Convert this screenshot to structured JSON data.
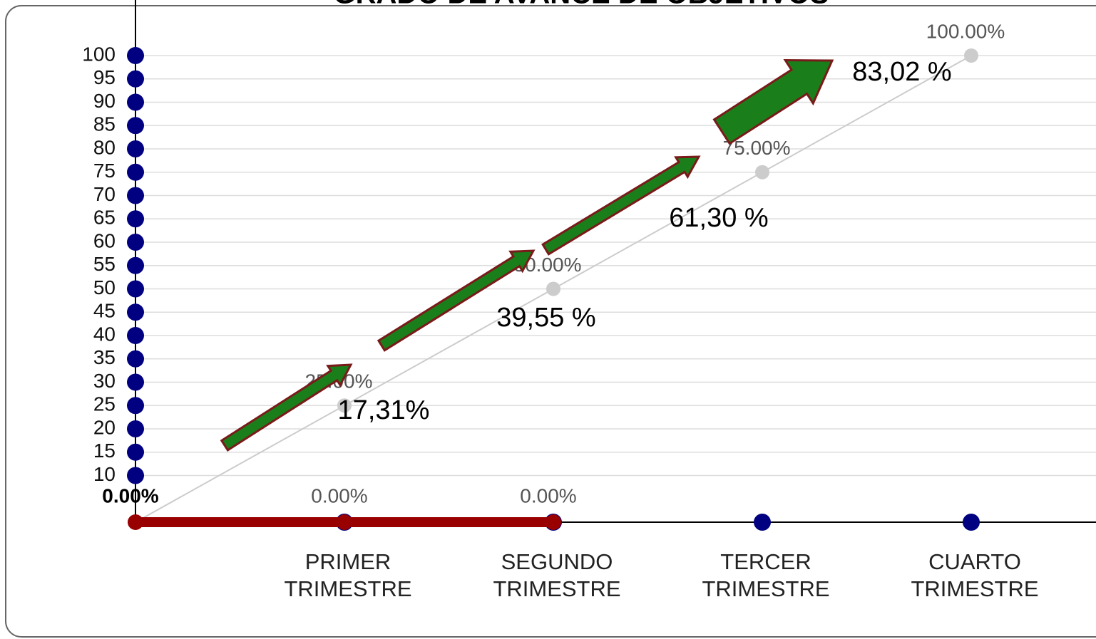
{
  "chart_data": {
    "type": "line",
    "title": "GRADO DE AVANCE DE OBJETIVOS",
    "categories": [
      null,
      "PRIMER TRIMESTRE",
      "SEGUNDO TRIMESTRE",
      "TERCER TRIMESTRE",
      "CUARTO TRIMESTRE"
    ],
    "series": [
      {
        "color": "#cccccc",
        "values": [
          0,
          25,
          50,
          75,
          100
        ],
        "value_labels": [
          null,
          "25.00%",
          "50.00%",
          "75.00%",
          "100.00%"
        ]
      },
      {
        "color": "#990000",
        "values": [
          0,
          0,
          0,
          null,
          null
        ],
        "value_labels": [
          "0.00%",
          "0.00%",
          "0.00%",
          null,
          null
        ]
      }
    ],
    "ylim": [
      0,
      100
    ],
    "yticks": [
      10,
      15,
      20,
      25,
      30,
      35,
      40,
      45,
      50,
      55,
      60,
      65,
      70,
      75,
      80,
      85,
      90,
      95,
      100
    ],
    "grid": true,
    "annotations": [
      "17,31%",
      "39,55 %",
      "61,30 %",
      "83,02 %"
    ]
  }
}
